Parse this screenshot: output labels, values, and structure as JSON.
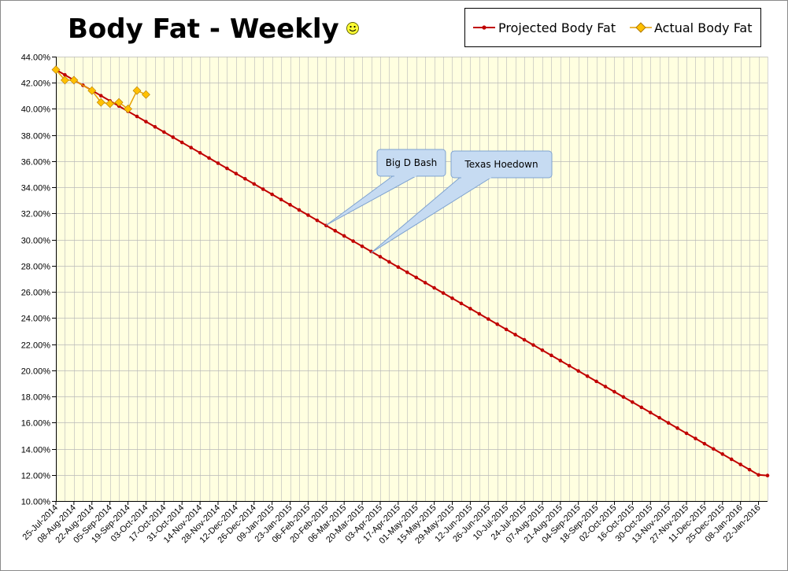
{
  "chart_data": {
    "type": "line",
    "title": "Body Fat - Weekly",
    "title_icon": "smiley-face-icon",
    "xlabel": "",
    "ylabel": "",
    "ylim": [
      0.1,
      0.44
    ],
    "y_ticks": [
      "10.00%",
      "12.00%",
      "14.00%",
      "16.00%",
      "18.00%",
      "20.00%",
      "22.00%",
      "24.00%",
      "26.00%",
      "28.00%",
      "30.00%",
      "32.00%",
      "34.00%",
      "36.00%",
      "38.00%",
      "40.00%",
      "42.00%",
      "44.00%"
    ],
    "x_tick_labels": [
      "25-Jul-2014",
      "08-Aug-2014",
      "22-Aug-2014",
      "05-Sep-2014",
      "19-Sep-2014",
      "03-Oct-2014",
      "17-Oct-2014",
      "31-Oct-2014",
      "14-Nov-2014",
      "28-Nov-2014",
      "12-Dec-2014",
      "26-Dec-2014",
      "09-Jan-2015",
      "23-Jan-2015",
      "06-Feb-2015",
      "20-Feb-2015",
      "06-Mar-2015",
      "20-Mar-2015",
      "03-Apr-2015",
      "17-Apr-2015",
      "01-May-2015",
      "15-May-2015",
      "29-May-2015",
      "12-Jun-2015",
      "26-Jun-2015",
      "10-Jul-2015",
      "24-Jul-2015",
      "07-Aug-2015",
      "21-Aug-2015",
      "04-Sep-2015",
      "18-Sep-2015",
      "02-Oct-2015",
      "16-Oct-2015",
      "30-Oct-2015",
      "13-Nov-2015",
      "27-Nov-2015",
      "11-Dec-2015",
      "25-Dec-2015",
      "08-Jan-2016",
      "22-Jan-2016"
    ],
    "grid": true,
    "legend_position": "top-right",
    "colors": {
      "plot_bg": "#ffffe0",
      "grid": "#b8b8b8",
      "projected": "#c00000",
      "actual_fill": "#ffc000",
      "actual_line": "#e6a000",
      "callout_fill": "#c6dbf2",
      "callout_stroke": "#7fa3d0"
    },
    "series": [
      {
        "name": "Projected Body Fat",
        "marker": "dot",
        "start_date": "25-Jul-2014",
        "end_date": "29-Jan-2016",
        "points": [
          {
            "date": "25-Jul-2014",
            "value": 0.43
          },
          {
            "date": "22-Jan-2016",
            "value": 0.12
          },
          {
            "date": "29-Jan-2016",
            "value": 0.1195
          }
        ]
      },
      {
        "name": "Actual Body Fat",
        "marker": "diamond",
        "points": [
          {
            "date": "25-Jul-2014",
            "value": 0.43
          },
          {
            "date": "01-Aug-2014",
            "value": 0.422
          },
          {
            "date": "08-Aug-2014",
            "value": 0.422
          },
          {
            "date": "22-Aug-2014",
            "value": 0.414
          },
          {
            "date": "29-Aug-2014",
            "value": 0.405
          },
          {
            "date": "05-Sep-2014",
            "value": 0.404
          },
          {
            "date": "12-Sep-2014",
            "value": 0.405
          },
          {
            "date": "19-Sep-2014",
            "value": 0.4
          },
          {
            "date": "26-Sep-2014",
            "value": 0.414
          },
          {
            "date": "03-Oct-2014",
            "value": 0.411
          }
        ]
      }
    ],
    "annotations": [
      {
        "text": "Big D Bash",
        "date": "20-Feb-2015",
        "value": 0.311
      },
      {
        "text": "Texas Hoedown",
        "date": "27-Mar-2015",
        "value": 0.29
      }
    ]
  }
}
